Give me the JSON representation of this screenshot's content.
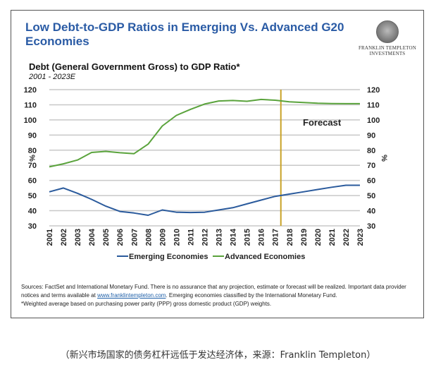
{
  "header": {
    "title": "Low Debt-to-GDP Ratios in Emerging Vs. Advanced G20 Economies",
    "logo_line1": "FRANKLIN TEMPLETON",
    "logo_line2": "INVESTMENTS"
  },
  "chart_data": {
    "type": "line",
    "title": "Debt (General Government Gross) to GDP Ratio*",
    "subtitle": "2001 - 2023E",
    "xlabel": "",
    "ylabel": "%",
    "ylabel_right": "%",
    "ylim": [
      30,
      120
    ],
    "yticks": [
      30,
      40,
      50,
      60,
      70,
      80,
      90,
      100,
      110,
      120
    ],
    "grid": true,
    "legend_position": "bottom",
    "x": [
      "2001",
      "2002",
      "2003",
      "2004",
      "2005",
      "2006",
      "2007",
      "2008",
      "2009",
      "2010",
      "2011",
      "2012",
      "2013",
      "2014",
      "2015",
      "2016",
      "2017",
      "2018",
      "2019",
      "2020",
      "2021",
      "2022",
      "2023"
    ],
    "series": [
      {
        "name": "Emerging Economies",
        "color": "#2a5a9c",
        "values": [
          52.5,
          55,
          51.5,
          47.5,
          43,
          39.5,
          38.5,
          37,
          40.5,
          39,
          38.8,
          39,
          40.5,
          42,
          44.5,
          47,
          49.5,
          51,
          52.5,
          54,
          55.5,
          56.8,
          56.8
        ]
      },
      {
        "name": "Advanced Economies",
        "color": "#5aa33c",
        "values": [
          69,
          71,
          73.5,
          78.5,
          79.2,
          78.3,
          77.7,
          84,
          96,
          103,
          107,
          110.5,
          112.5,
          112.8,
          112.3,
          113.5,
          113,
          112,
          111.5,
          111,
          110.8,
          110.7,
          110.7
        ]
      }
    ],
    "annotations": [
      {
        "type": "vertical-line",
        "x": 2017.4,
        "color": "#c9a227"
      },
      {
        "type": "text",
        "text": "Forecast"
      }
    ]
  },
  "notes": {
    "line1": "Sources: FactSet and International Monetary Fund. There is no assurance that any projection, estimate or forecast will be realized. Important data provider",
    "line2_pre": "notices and terms available at ",
    "line2_link": "www.franklintempleton.com",
    "line2_post": ". Emerging economies classified by the International Monetary Fund.",
    "line3": "*Weighted average based on purchasing power parity (PPP) gross domestic product (GDP) weights."
  },
  "caption": "（新兴市场国家的债务杠杆远低于发达经济体，来源：Franklin Templeton）"
}
